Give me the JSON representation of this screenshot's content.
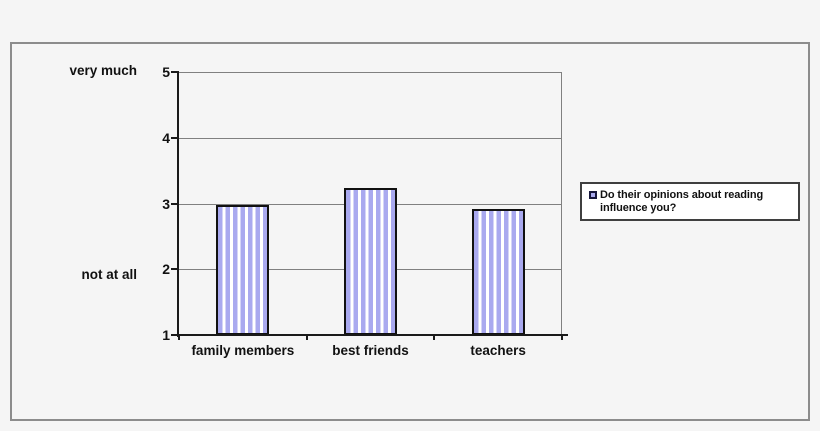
{
  "chart_data": {
    "type": "bar",
    "title": "",
    "xlabel": "",
    "ylabel": "",
    "categories": [
      "family members",
      "best friends",
      "teachers"
    ],
    "series": [
      {
        "name": "Do their opinions about reading influence you?",
        "values": [
          2.97,
          3.24,
          2.92
        ]
      }
    ],
    "ylim": [
      1,
      5
    ],
    "yticks": [
      1,
      2,
      3,
      4,
      5
    ],
    "grid": true,
    "y_axis_annotations": [
      {
        "value": 5,
        "label": "very much",
        "dy": -1
      },
      {
        "value": 2,
        "label": "not at all",
        "dy": 6
      }
    ],
    "legend": {
      "label": "Do their opinions about reading influence you?",
      "position": "right"
    },
    "colors": {
      "background": "#f5f5f5",
      "frame_border": "#8c8c8c",
      "gridline": "#808080",
      "axis": "#1a1a1a",
      "bar_stripe": "#a9a9ef",
      "bar_stripe_bg": "#ffffff",
      "bar_border": "#111111",
      "legend_bg": "#ffffff",
      "legend_border": "#3f3f3f",
      "text": "#111111"
    }
  }
}
